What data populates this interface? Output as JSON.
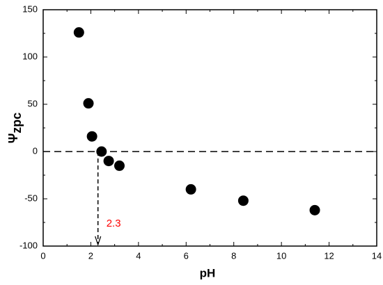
{
  "chart_data": {
    "type": "scatter",
    "x": [
      1.5,
      1.9,
      2.05,
      2.45,
      2.75,
      3.2,
      6.2,
      8.4,
      11.4
    ],
    "values": [
      126,
      51,
      16,
      0,
      -10,
      -15,
      -40,
      -52,
      -62
    ],
    "color": "#000000",
    "xlabel": "pH",
    "ylabel": "Ψ",
    "ylabel_subscript": "zpc",
    "xlim": [
      0,
      14
    ],
    "xticks": [
      0,
      2,
      4,
      6,
      8,
      10,
      12,
      14
    ],
    "ylim": [
      -100,
      150
    ],
    "yticks": [
      -100,
      -50,
      0,
      50,
      100,
      150
    ],
    "hline": 0,
    "annotation": {
      "text": "2.3",
      "x": 2.3,
      "color": "#ff0000"
    }
  }
}
